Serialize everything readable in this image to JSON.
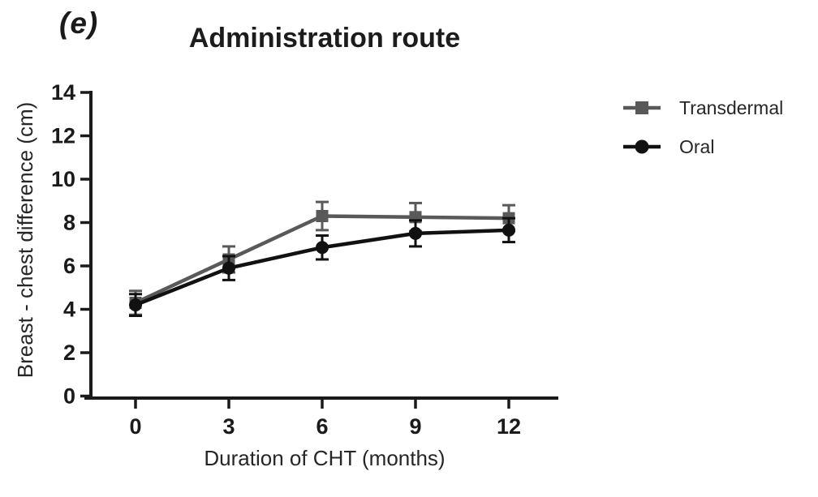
{
  "figure_label": "(e)",
  "title": "Administration route",
  "chart_data": {
    "type": "line",
    "x": [
      0,
      3,
      6,
      9,
      12
    ],
    "xlabel": "Duration of CHT (months)",
    "ylabel": "Breast - chest difference (cm)",
    "xlim": [
      0,
      12
    ],
    "ylim": [
      0,
      14
    ],
    "xticks": [
      0,
      3,
      6,
      9,
      12
    ],
    "yticks": [
      0,
      2,
      4,
      6,
      8,
      10,
      12,
      14
    ],
    "grid": false,
    "legend_position": "right",
    "error_bars": true,
    "axis_color": "#1a1a1a",
    "series": [
      {
        "name": "Transdermal",
        "marker": "square",
        "color": "#595959",
        "values": [
          4.3,
          6.3,
          8.3,
          8.25,
          8.2
        ],
        "errors": [
          0.55,
          0.6,
          0.65,
          0.65,
          0.6
        ]
      },
      {
        "name": "Oral",
        "marker": "circle",
        "color": "#111111",
        "values": [
          4.2,
          5.9,
          6.85,
          7.5,
          7.65
        ],
        "errors": [
          0.5,
          0.55,
          0.55,
          0.6,
          0.55
        ]
      }
    ]
  }
}
